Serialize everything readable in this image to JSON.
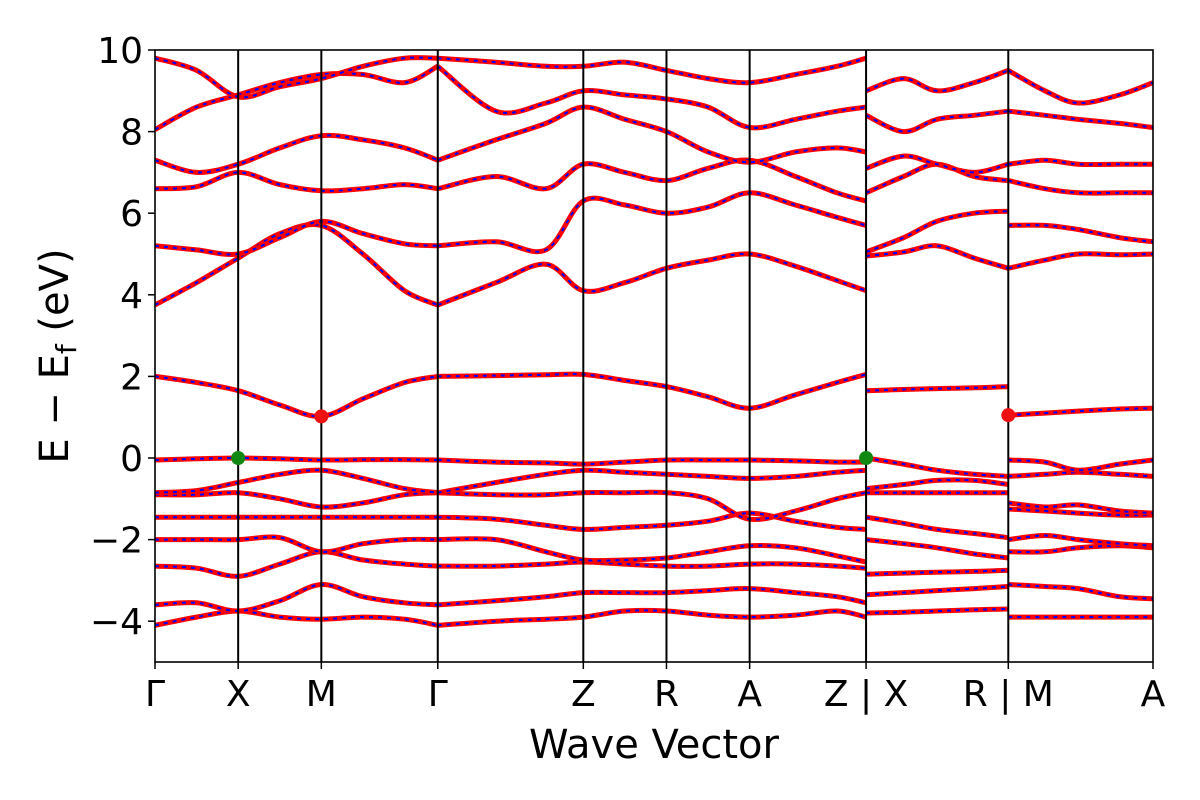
{
  "chart_data": {
    "type": "line",
    "xlabel": "Wave Vector",
    "ylabel": "E − E",
    "ylabel_sub": "f",
    "ylabel_unit": " (eV)",
    "ylim": [
      -5,
      10
    ],
    "y_ticks": [
      -4,
      -2,
      0,
      2,
      4,
      6,
      8,
      10
    ],
    "y_tick_labels": [
      "−4",
      "−2",
      "0",
      "2",
      "4",
      "6",
      "8",
      "10"
    ],
    "x_range": [
      0,
      12
    ],
    "kpoints": [
      {
        "label": "Γ",
        "x": 0
      },
      {
        "label": "X",
        "x": 1
      },
      {
        "label": "M",
        "x": 2
      },
      {
        "label": "Γ",
        "x": 3.4
      },
      {
        "label": "Z",
        "x": 5.15
      },
      {
        "label": "R",
        "x": 6.15
      },
      {
        "label": "A",
        "x": 7.15
      },
      {
        "label": "Z | X",
        "x": 8.55
      },
      {
        "label": "R | M",
        "x": 10.26
      },
      {
        "label": "A",
        "x": 12
      }
    ],
    "grid": false,
    "legend": "none",
    "colors": {
      "band_outer": "#ff0000",
      "band_inner": "#0000ff",
      "cbm": "#ee1111",
      "vbm": "#118811",
      "axes": "#000000"
    },
    "segments": [
      {
        "x": [
          0,
          0.5,
          1,
          1.5,
          2,
          2.5,
          3,
          3.4
        ],
        "bands": [
          [
            -4.1,
            -3.9,
            -3.75,
            -3.9,
            -3.95,
            -3.9,
            -3.95,
            -4.1
          ],
          [
            -3.6,
            -3.55,
            -3.75,
            -3.5,
            -3.1,
            -3.4,
            -3.55,
            -3.6
          ],
          [
            -2.65,
            -2.7,
            -2.9,
            -2.6,
            -2.3,
            -2.5,
            -2.6,
            -2.65
          ],
          [
            -2.0,
            -2.0,
            -2.0,
            -1.95,
            -2.3,
            -2.1,
            -2.0,
            -2.0
          ],
          [
            -1.45,
            -1.45,
            -1.45,
            -1.45,
            -1.45,
            -1.45,
            -1.45,
            -1.45
          ],
          [
            -0.9,
            -0.9,
            -0.85,
            -1.0,
            -1.2,
            -1.1,
            -0.9,
            -0.85
          ],
          [
            -0.85,
            -0.8,
            -0.6,
            -0.4,
            -0.3,
            -0.5,
            -0.75,
            -0.85
          ],
          [
            -0.05,
            -0.02,
            0.0,
            -0.02,
            -0.05,
            -0.04,
            -0.04,
            -0.05
          ],
          [
            2.0,
            1.85,
            1.65,
            1.3,
            1.02,
            1.45,
            1.85,
            2.0
          ],
          [
            3.75,
            4.3,
            4.9,
            5.5,
            5.7,
            5.0,
            4.1,
            3.75
          ],
          [
            5.2,
            5.1,
            5.0,
            5.4,
            5.8,
            5.5,
            5.25,
            5.2
          ],
          [
            6.6,
            6.65,
            7.0,
            6.7,
            6.55,
            6.6,
            6.7,
            6.6
          ],
          [
            7.3,
            7.0,
            7.2,
            7.6,
            7.9,
            7.8,
            7.6,
            7.3
          ],
          [
            8.05,
            8.6,
            8.9,
            9.2,
            9.4,
            9.4,
            9.2,
            9.6
          ],
          [
            9.8,
            9.5,
            8.85,
            9.1,
            9.3,
            9.6,
            9.8,
            9.8
          ]
        ]
      },
      {
        "x": [
          3.4,
          4.1,
          4.7,
          5.15,
          5.65,
          6.15,
          6.65,
          7.15,
          7.7,
          8.2,
          8.55
        ],
        "bands": [
          [
            -4.1,
            -4.0,
            -3.95,
            -3.9,
            -3.75,
            -3.75,
            -3.85,
            -3.9,
            -3.85,
            -3.75,
            -3.9
          ],
          [
            -3.6,
            -3.5,
            -3.4,
            -3.3,
            -3.3,
            -3.3,
            -3.25,
            -3.2,
            -3.3,
            -3.4,
            -3.55
          ],
          [
            -2.65,
            -2.65,
            -2.6,
            -2.55,
            -2.6,
            -2.65,
            -2.65,
            -2.6,
            -2.6,
            -2.65,
            -2.7
          ],
          [
            -2.0,
            -2.0,
            -2.3,
            -2.5,
            -2.5,
            -2.45,
            -2.3,
            -2.15,
            -2.2,
            -2.4,
            -2.55
          ],
          [
            -1.45,
            -1.5,
            -1.65,
            -1.75,
            -1.7,
            -1.65,
            -1.55,
            -1.35,
            -1.55,
            -1.7,
            -1.75
          ],
          [
            -0.85,
            -0.9,
            -0.9,
            -0.85,
            -0.85,
            -0.85,
            -1.0,
            -1.5,
            -1.3,
            -1.0,
            -0.85
          ],
          [
            -0.85,
            -0.6,
            -0.4,
            -0.3,
            -0.35,
            -0.4,
            -0.45,
            -0.5,
            -0.45,
            -0.35,
            -0.3
          ],
          [
            -0.05,
            -0.1,
            -0.12,
            -0.15,
            -0.1,
            -0.05,
            -0.05,
            -0.05,
            -0.07,
            -0.1,
            -0.1
          ],
          [
            2.0,
            2.02,
            2.04,
            2.05,
            1.9,
            1.75,
            1.5,
            1.22,
            1.55,
            1.85,
            2.05
          ],
          [
            3.75,
            4.3,
            4.75,
            4.1,
            4.3,
            4.65,
            4.85,
            5.0,
            4.7,
            4.35,
            4.1
          ],
          [
            5.2,
            5.3,
            5.1,
            6.3,
            6.2,
            6.0,
            6.15,
            6.5,
            6.2,
            5.9,
            5.7
          ],
          [
            6.6,
            6.9,
            6.6,
            7.2,
            7.0,
            6.8,
            7.1,
            7.3,
            6.9,
            6.5,
            6.3
          ],
          [
            7.3,
            7.8,
            8.2,
            8.6,
            8.3,
            8.0,
            7.5,
            7.25,
            7.5,
            7.6,
            7.5
          ],
          [
            9.6,
            8.5,
            8.7,
            9.0,
            8.9,
            8.8,
            8.6,
            8.1,
            8.3,
            8.5,
            8.6
          ],
          [
            9.8,
            9.7,
            9.6,
            9.6,
            9.7,
            9.5,
            9.3,
            9.2,
            9.4,
            9.6,
            9.8
          ]
        ]
      },
      {
        "x": [
          8.55,
          9.0,
          9.4,
          9.85,
          10.26
        ],
        "bands": [
          [
            -3.8,
            -3.78,
            -3.75,
            -3.72,
            -3.7
          ],
          [
            -3.35,
            -3.3,
            -3.25,
            -3.2,
            -3.15
          ],
          [
            -2.85,
            -2.82,
            -2.8,
            -2.78,
            -2.75
          ],
          [
            -2.0,
            -2.1,
            -2.2,
            -2.35,
            -2.45
          ],
          [
            -1.45,
            -1.6,
            -1.75,
            -1.85,
            -1.95
          ],
          [
            -0.85,
            -0.85,
            -0.85,
            -0.85,
            -0.85
          ],
          [
            -0.75,
            -0.65,
            -0.55,
            -0.55,
            -0.65
          ],
          [
            0.0,
            -0.15,
            -0.3,
            -0.4,
            -0.45
          ],
          [
            1.65,
            1.68,
            1.7,
            1.72,
            1.75
          ],
          [
            4.95,
            5.05,
            5.2,
            4.9,
            4.65
          ],
          [
            5.05,
            5.4,
            5.8,
            6.0,
            6.05
          ],
          [
            6.5,
            6.9,
            7.2,
            6.9,
            6.8
          ],
          [
            7.1,
            7.4,
            7.2,
            7.0,
            7.2
          ],
          [
            8.4,
            8.0,
            8.3,
            8.4,
            8.5
          ],
          [
            9.0,
            9.3,
            9.0,
            9.2,
            9.5
          ]
        ]
      },
      {
        "x": [
          10.26,
          10.7,
          11.1,
          11.6,
          12
        ],
        "bands": [
          [
            -3.9,
            -3.9,
            -3.9,
            -3.9,
            -3.9
          ],
          [
            -3.1,
            -3.15,
            -3.2,
            -3.4,
            -3.45
          ],
          [
            -2.3,
            -2.3,
            -2.2,
            -2.15,
            -2.2
          ],
          [
            -2.0,
            -1.9,
            -2.0,
            -2.1,
            -2.15
          ],
          [
            -1.25,
            -1.3,
            -1.35,
            -1.4,
            -1.4
          ],
          [
            -1.1,
            -1.2,
            -1.15,
            -1.3,
            -1.35
          ],
          [
            -0.45,
            -0.4,
            -0.35,
            -0.4,
            -0.45
          ],
          [
            -0.05,
            -0.1,
            -0.3,
            -0.15,
            -0.05
          ],
          [
            1.05,
            1.1,
            1.15,
            1.2,
            1.22
          ],
          [
            4.65,
            4.85,
            5.0,
            4.98,
            5.0
          ],
          [
            5.7,
            5.7,
            5.6,
            5.4,
            5.3
          ],
          [
            6.8,
            6.6,
            6.5,
            6.5,
            6.5
          ],
          [
            7.2,
            7.3,
            7.2,
            7.2,
            7.2
          ],
          [
            8.5,
            8.4,
            8.3,
            8.2,
            8.1
          ],
          [
            9.5,
            9.0,
            8.7,
            8.9,
            9.2
          ]
        ]
      }
    ],
    "markers": [
      {
        "type": "vbm",
        "x": 1,
        "y": 0.0
      },
      {
        "type": "cbm",
        "x": 2,
        "y": 1.02
      },
      {
        "type": "vbm",
        "x": 8.55,
        "y": 0.0
      },
      {
        "type": "cbm",
        "x": 10.26,
        "y": 1.05
      }
    ]
  }
}
